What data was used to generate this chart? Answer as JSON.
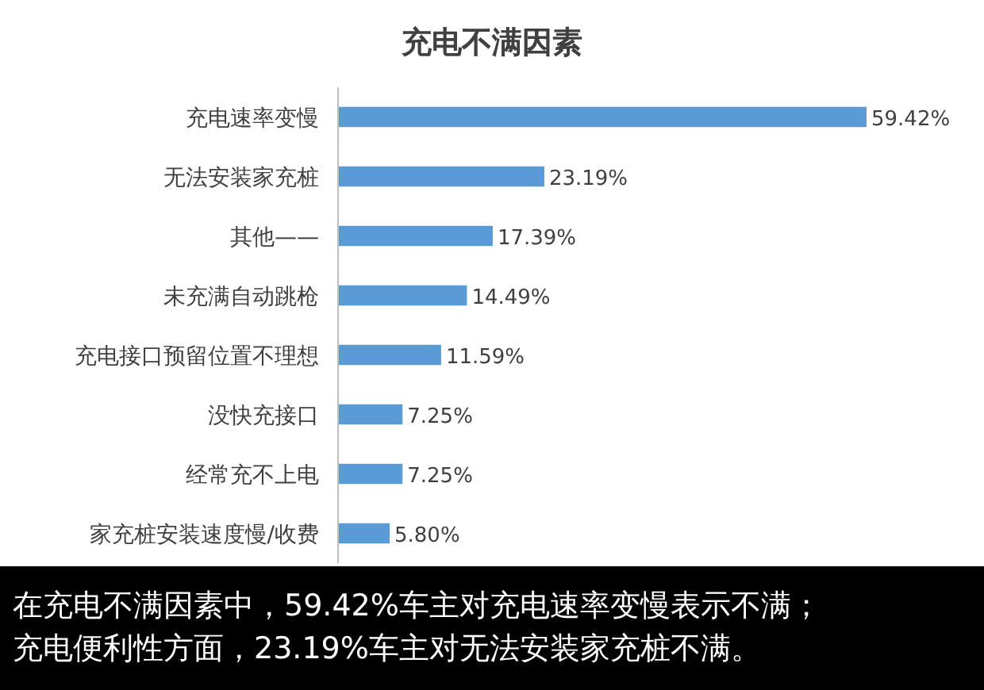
{
  "chart_data": {
    "type": "bar",
    "orientation": "horizontal",
    "title": "充电不满因素",
    "categories": [
      "充电速率变慢",
      "无法安装家充桩",
      "其他——",
      "未充满自动跳枪",
      "充电接口预留位置不理想",
      "没快充接口",
      "经常充不上电",
      "家充桩安装速度慢/收费"
    ],
    "values": [
      59.42,
      23.19,
      17.39,
      14.49,
      11.59,
      7.25,
      7.25,
      5.8
    ],
    "value_labels": [
      "59.42%",
      "23.19%",
      "17.39%",
      "14.49%",
      "11.59%",
      "7.25%",
      "7.25%",
      "5.80%"
    ],
    "color": "#5b9bd5",
    "annotations": [
      "在充电不满因素中，59.42%车主对充电速率变慢表示不满；",
      "充电便利性方面，23.19%车主对无法安装家充桩不满。"
    ]
  }
}
